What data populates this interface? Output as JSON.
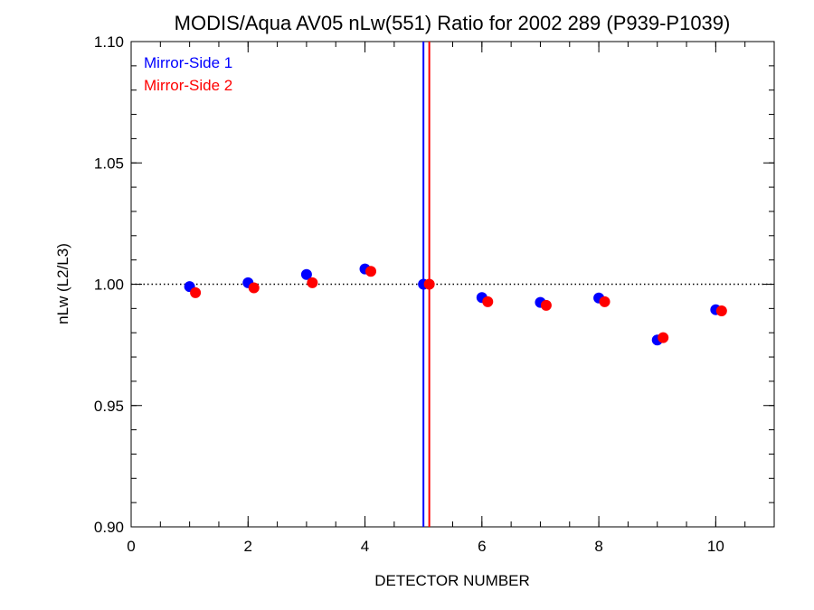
{
  "chart_data": {
    "type": "scatter",
    "title": "MODIS/Aqua AV05 nLw(551) Ratio for 2002 289 (P939-P1039)",
    "xlabel": "DETECTOR NUMBER",
    "ylabel": "nLw (L2/L3)",
    "xlim": [
      0,
      11
    ],
    "ylim": [
      0.9,
      1.1
    ],
    "x_ticks": [
      0,
      2,
      4,
      6,
      8,
      10
    ],
    "x_tick_labels": [
      "0",
      "2",
      "4",
      "6",
      "8",
      "10"
    ],
    "y_ticks": [
      0.9,
      0.95,
      1.0,
      1.05,
      1.1
    ],
    "y_tick_labels": [
      "0.90",
      "0.95",
      "1.00",
      "1.05",
      "1.10"
    ],
    "reference_line": {
      "y": 1.0,
      "style": "dotted"
    },
    "legend_position": "top-left",
    "series": [
      {
        "name": "Mirror-Side 1",
        "color": "#0000ff",
        "points": [
          {
            "x": 1,
            "y": 0.999
          },
          {
            "x": 2,
            "y": 1.0006
          },
          {
            "x": 3,
            "y": 1.004
          },
          {
            "x": 4,
            "y": 1.0063
          },
          {
            "x": 5,
            "y": 1.0
          },
          {
            "x": 6,
            "y": 0.9945
          },
          {
            "x": 7,
            "y": 0.9925
          },
          {
            "x": 8,
            "y": 0.9943
          },
          {
            "x": 9,
            "y": 0.977
          },
          {
            "x": 10,
            "y": 0.9895
          }
        ],
        "vertical_line_x": 5.0
      },
      {
        "name": "Mirror-Side 2",
        "color": "#ff0000",
        "points": [
          {
            "x": 1.1,
            "y": 0.9965
          },
          {
            "x": 2.1,
            "y": 0.9985
          },
          {
            "x": 3.1,
            "y": 1.0006
          },
          {
            "x": 4.1,
            "y": 1.0053
          },
          {
            "x": 5.1,
            "y": 1.0
          },
          {
            "x": 6.1,
            "y": 0.9928
          },
          {
            "x": 7.1,
            "y": 0.9913
          },
          {
            "x": 8.1,
            "y": 0.9928
          },
          {
            "x": 9.1,
            "y": 0.978
          },
          {
            "x": 10.1,
            "y": 0.989
          }
        ],
        "vertical_line_x": 5.1
      }
    ]
  }
}
